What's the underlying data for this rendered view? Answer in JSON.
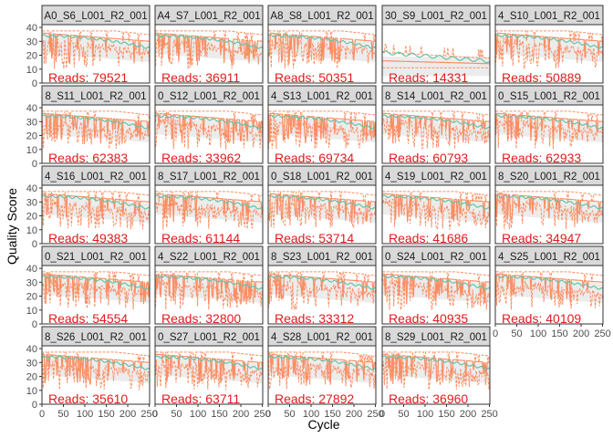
{
  "chart_data": {
    "type": "line",
    "xlabel": "Cycle",
    "ylabel": "Quality Score",
    "xlim": [
      0,
      251
    ],
    "ylim": [
      0,
      42
    ],
    "x_ticks": [
      0,
      50,
      100,
      150,
      200,
      250
    ],
    "y_ticks": [
      0,
      10,
      20,
      30,
      40
    ],
    "reads_prefix": "Reads:",
    "colors": {
      "quantile": "#fc8d62",
      "mean": "#66c2a5",
      "heat": "#c8c8c8",
      "strip_bg": "#d9d9d9",
      "reads": "#e31a1c"
    },
    "panels": [
      {
        "label": "A0_S6_L001_R2_001",
        "reads": "79521"
      },
      {
        "label": "A4_S7_L001_R2_001",
        "reads": "36911"
      },
      {
        "label": "A8_S8_L001_R2_001",
        "reads": "50351"
      },
      {
        "label": "30_S9_L001_R2_001",
        "reads": "14331"
      },
      {
        "label": "4_S10_L001_R2_001",
        "reads": "50889"
      },
      {
        "label": "8_S11_L001_R2_001",
        "reads": "62383"
      },
      {
        "label": "0_S12_L001_R2_001",
        "reads": "33962"
      },
      {
        "label": "4_S13_L001_R2_001",
        "reads": "69734"
      },
      {
        "label": "8_S14_L001_R2_001",
        "reads": "60793"
      },
      {
        "label": "0_S15_L001_R2_001",
        "reads": "62933"
      },
      {
        "label": "4_S16_L001_R2_001",
        "reads": "49383"
      },
      {
        "label": "8_S17_L001_R2_001",
        "reads": "61144"
      },
      {
        "label": "0_S18_L001_R2_001",
        "reads": "53714"
      },
      {
        "label": "4_S19_L001_R2_001",
        "reads": "41686"
      },
      {
        "label": "8_S20_L001_R2_001",
        "reads": "34947"
      },
      {
        "label": "0_S21_L001_R2_001",
        "reads": "54554"
      },
      {
        "label": "4_S22_L001_R2_001",
        "reads": "32800"
      },
      {
        "label": "8_S23_L001_R2_001",
        "reads": "33312"
      },
      {
        "label": "0_S24_L001_R2_001",
        "reads": "40935"
      },
      {
        "label": "4_S25_L001_R2_001",
        "reads": "40109"
      },
      {
        "label": "8_S26_L001_R2_001",
        "reads": "35610"
      },
      {
        "label": "0_S27_L001_R2_001",
        "reads": "63711"
      },
      {
        "label": "4_S28_L001_R2_001",
        "reads": "27892"
      },
      {
        "label": "8_S29_L001_R2_001",
        "reads": "36960"
      }
    ]
  }
}
